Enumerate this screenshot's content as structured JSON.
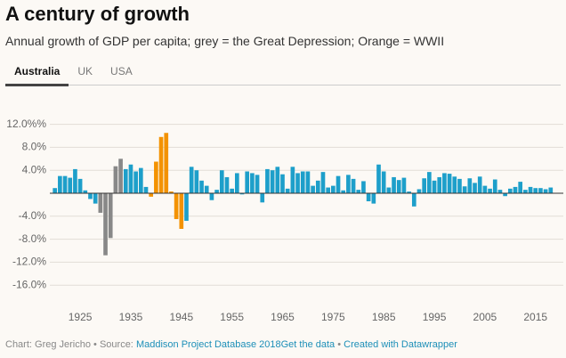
{
  "chart_data": {
    "type": "bar",
    "title": "A century of growth",
    "subtitle": "Annual growth of GDP per capita; grey = the Great Depression; Orange = WWII",
    "tabs": [
      "Australia",
      "UK",
      "USA"
    ],
    "active_tab": 0,
    "x": [
      1920,
      1921,
      1922,
      1923,
      1924,
      1925,
      1926,
      1927,
      1928,
      1929,
      1930,
      1931,
      1932,
      1933,
      1934,
      1935,
      1936,
      1937,
      1938,
      1939,
      1940,
      1941,
      1942,
      1943,
      1944,
      1945,
      1946,
      1947,
      1948,
      1949,
      1950,
      1951,
      1952,
      1953,
      1954,
      1955,
      1956,
      1957,
      1958,
      1959,
      1960,
      1961,
      1962,
      1963,
      1964,
      1965,
      1966,
      1967,
      1968,
      1969,
      1970,
      1971,
      1972,
      1973,
      1974,
      1975,
      1976,
      1977,
      1978,
      1979,
      1980,
      1981,
      1982,
      1983,
      1984,
      1985,
      1986,
      1987,
      1988,
      1989,
      1990,
      1991,
      1992,
      1993,
      1994,
      1995,
      1996,
      1997,
      1998,
      1999,
      2000,
      2001,
      2002,
      2003,
      2004,
      2005,
      2006,
      2007,
      2008,
      2009,
      2010,
      2011,
      2012,
      2013,
      2014,
      2015,
      2016,
      2017,
      2018
    ],
    "values": [
      0.9,
      3.0,
      3.0,
      2.7,
      4.2,
      2.5,
      0.5,
      -1.0,
      -1.8,
      -3.4,
      -10.8,
      -7.8,
      4.7,
      6.0,
      4.2,
      5.0,
      3.8,
      4.4,
      1.1,
      -0.6,
      5.5,
      9.8,
      10.5,
      0.3,
      -4.5,
      -6.2,
      -4.8,
      4.6,
      4.0,
      2.2,
      1.3,
      -1.2,
      0.6,
      4.0,
      2.8,
      0.8,
      3.5,
      -0.2,
      3.8,
      3.5,
      3.2,
      -1.6,
      4.2,
      4.0,
      4.6,
      3.3,
      0.8,
      4.6,
      3.5,
      3.8,
      3.8,
      1.3,
      2.2,
      3.7,
      1.0,
      1.3,
      3.0,
      0.5,
      3.2,
      2.5,
      0.6,
      2.1,
      -1.4,
      -1.8,
      5.0,
      3.8,
      1.0,
      2.8,
      2.3,
      2.7,
      0.3,
      -2.3,
      0.7,
      2.6,
      3.7,
      2.2,
      2.8,
      3.5,
      3.4,
      2.9,
      2.5,
      1.2,
      2.6,
      1.8,
      2.9,
      1.3,
      0.8,
      2.4,
      0.6,
      -0.5,
      0.8,
      1.1,
      2.0,
      0.6,
      1.1,
      0.9,
      0.9,
      0.7,
      1.0
    ],
    "colors": [
      "#1d9fca",
      "#1d9fca",
      "#1d9fca",
      "#1d9fca",
      "#1d9fca",
      "#1d9fca",
      "#1d9fca",
      "#1d9fca",
      "#1d9fca",
      "#888888",
      "#888888",
      "#888888",
      "#888888",
      "#888888",
      "#1d9fca",
      "#1d9fca",
      "#1d9fca",
      "#1d9fca",
      "#1d9fca",
      "#f39200",
      "#f39200",
      "#f39200",
      "#f39200",
      "#f39200",
      "#f39200",
      "#f39200",
      "#1d9fca",
      "#1d9fca",
      "#1d9fca",
      "#1d9fca",
      "#1d9fca",
      "#1d9fca",
      "#1d9fca",
      "#1d9fca",
      "#1d9fca",
      "#1d9fca",
      "#1d9fca",
      "#1d9fca",
      "#1d9fca",
      "#1d9fca",
      "#1d9fca",
      "#1d9fca",
      "#1d9fca",
      "#1d9fca",
      "#1d9fca",
      "#1d9fca",
      "#1d9fca",
      "#1d9fca",
      "#1d9fca",
      "#1d9fca",
      "#1d9fca",
      "#1d9fca",
      "#1d9fca",
      "#1d9fca",
      "#1d9fca",
      "#1d9fca",
      "#1d9fca",
      "#1d9fca",
      "#1d9fca",
      "#1d9fca",
      "#1d9fca",
      "#1d9fca",
      "#1d9fca",
      "#1d9fca",
      "#1d9fca",
      "#1d9fca",
      "#1d9fca",
      "#1d9fca",
      "#1d9fca",
      "#1d9fca",
      "#1d9fca",
      "#1d9fca",
      "#1d9fca",
      "#1d9fca",
      "#1d9fca",
      "#1d9fca",
      "#1d9fca",
      "#1d9fca",
      "#1d9fca",
      "#1d9fca",
      "#1d9fca",
      "#1d9fca",
      "#1d9fca",
      "#1d9fca",
      "#1d9fca",
      "#1d9fca",
      "#1d9fca",
      "#1d9fca",
      "#1d9fca",
      "#1d9fca",
      "#1d9fca",
      "#1d9fca",
      "#1d9fca",
      "#1d9fca",
      "#1d9fca",
      "#1d9fca",
      "#1d9fca",
      "#1d9fca",
      "#1d9fca"
    ],
    "xlim": [
      1919,
      2020.5
    ],
    "xticks": [
      1925,
      1935,
      1945,
      1955,
      1965,
      1975,
      1985,
      1995,
      2005,
      2015
    ],
    "ylim": [
      -18,
      14
    ],
    "yticks": [
      {
        "value": 12,
        "label": "12.0%%"
      },
      {
        "value": 8,
        "label": "8.0%"
      },
      {
        "value": 4,
        "label": "4.0%"
      },
      {
        "value": -4,
        "label": "-4.0%"
      },
      {
        "value": -8,
        "label": "-8.0%"
      },
      {
        "value": -12,
        "label": "-12.0%"
      },
      {
        "value": -16,
        "label": "-16.0%"
      }
    ],
    "grid": true,
    "footer": {
      "byline": "Chart: Greg Jericho",
      "source_label": "Source:",
      "source": "Maddison Project Database 2018",
      "get_data": "Get the data",
      "credit": "Created with Datawrapper"
    }
  }
}
